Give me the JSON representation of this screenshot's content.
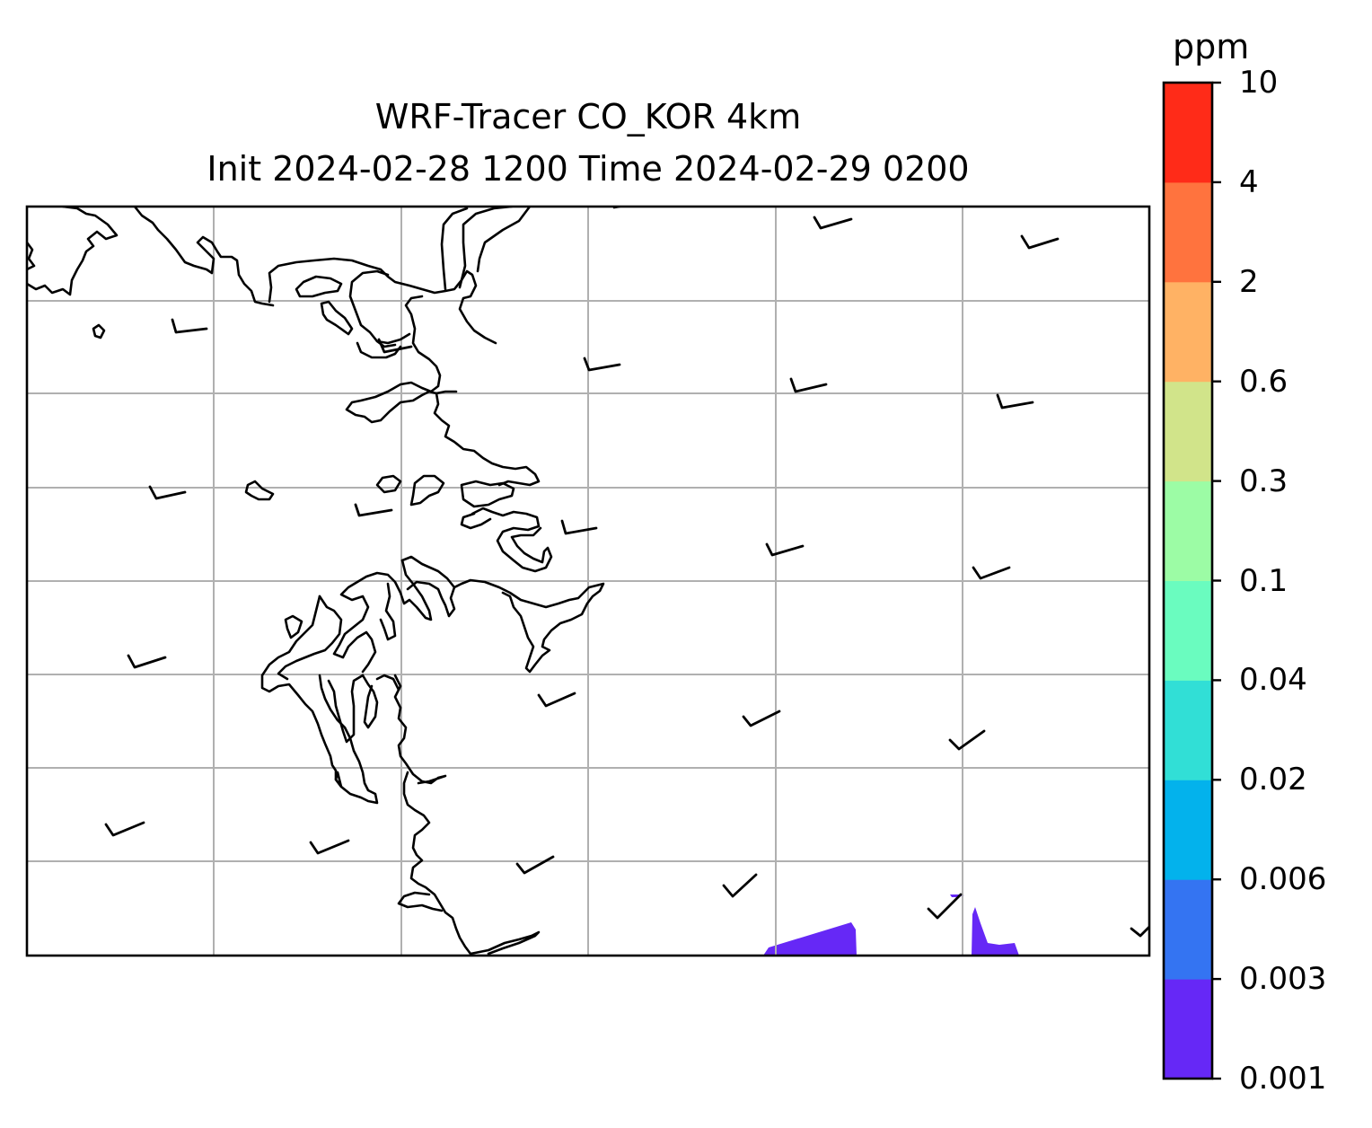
{
  "title": {
    "line1": "WRF-Tracer CO_KOR 4km",
    "line2": "Init 2024-02-28 1200 Time 2024-02-29 0200"
  },
  "colorbar": {
    "unit": "ppm",
    "levels": [
      "0.001",
      "0.003",
      "0.006",
      "0.02",
      "0.04",
      "0.1",
      "0.3",
      "0.6",
      "2",
      "4",
      "10"
    ],
    "colors": [
      "#6628f6",
      "#3474f2",
      "#03b2ec",
      "#31dfd6",
      "#6afcbf",
      "#9cfca5",
      "#d1e48a",
      "#ffb264",
      "#ff733e",
      "#ff2b18"
    ]
  },
  "map": {
    "gridlines": "on",
    "concentration_area_level": "0.001"
  },
  "chart_data": {
    "type": "heatmap",
    "title": "WRF-Tracer CO_KOR 4km",
    "subtitle": "Init 2024-02-28 1200 Time 2024-02-29 0200",
    "colorbar_label": "ppm",
    "colorbar_levels": [
      0.001,
      0.003,
      0.006,
      0.02,
      0.04,
      0.1,
      0.3,
      0.6,
      2,
      4,
      10
    ],
    "filled_bin": [
      0.001,
      0.003
    ],
    "grid": true
  }
}
